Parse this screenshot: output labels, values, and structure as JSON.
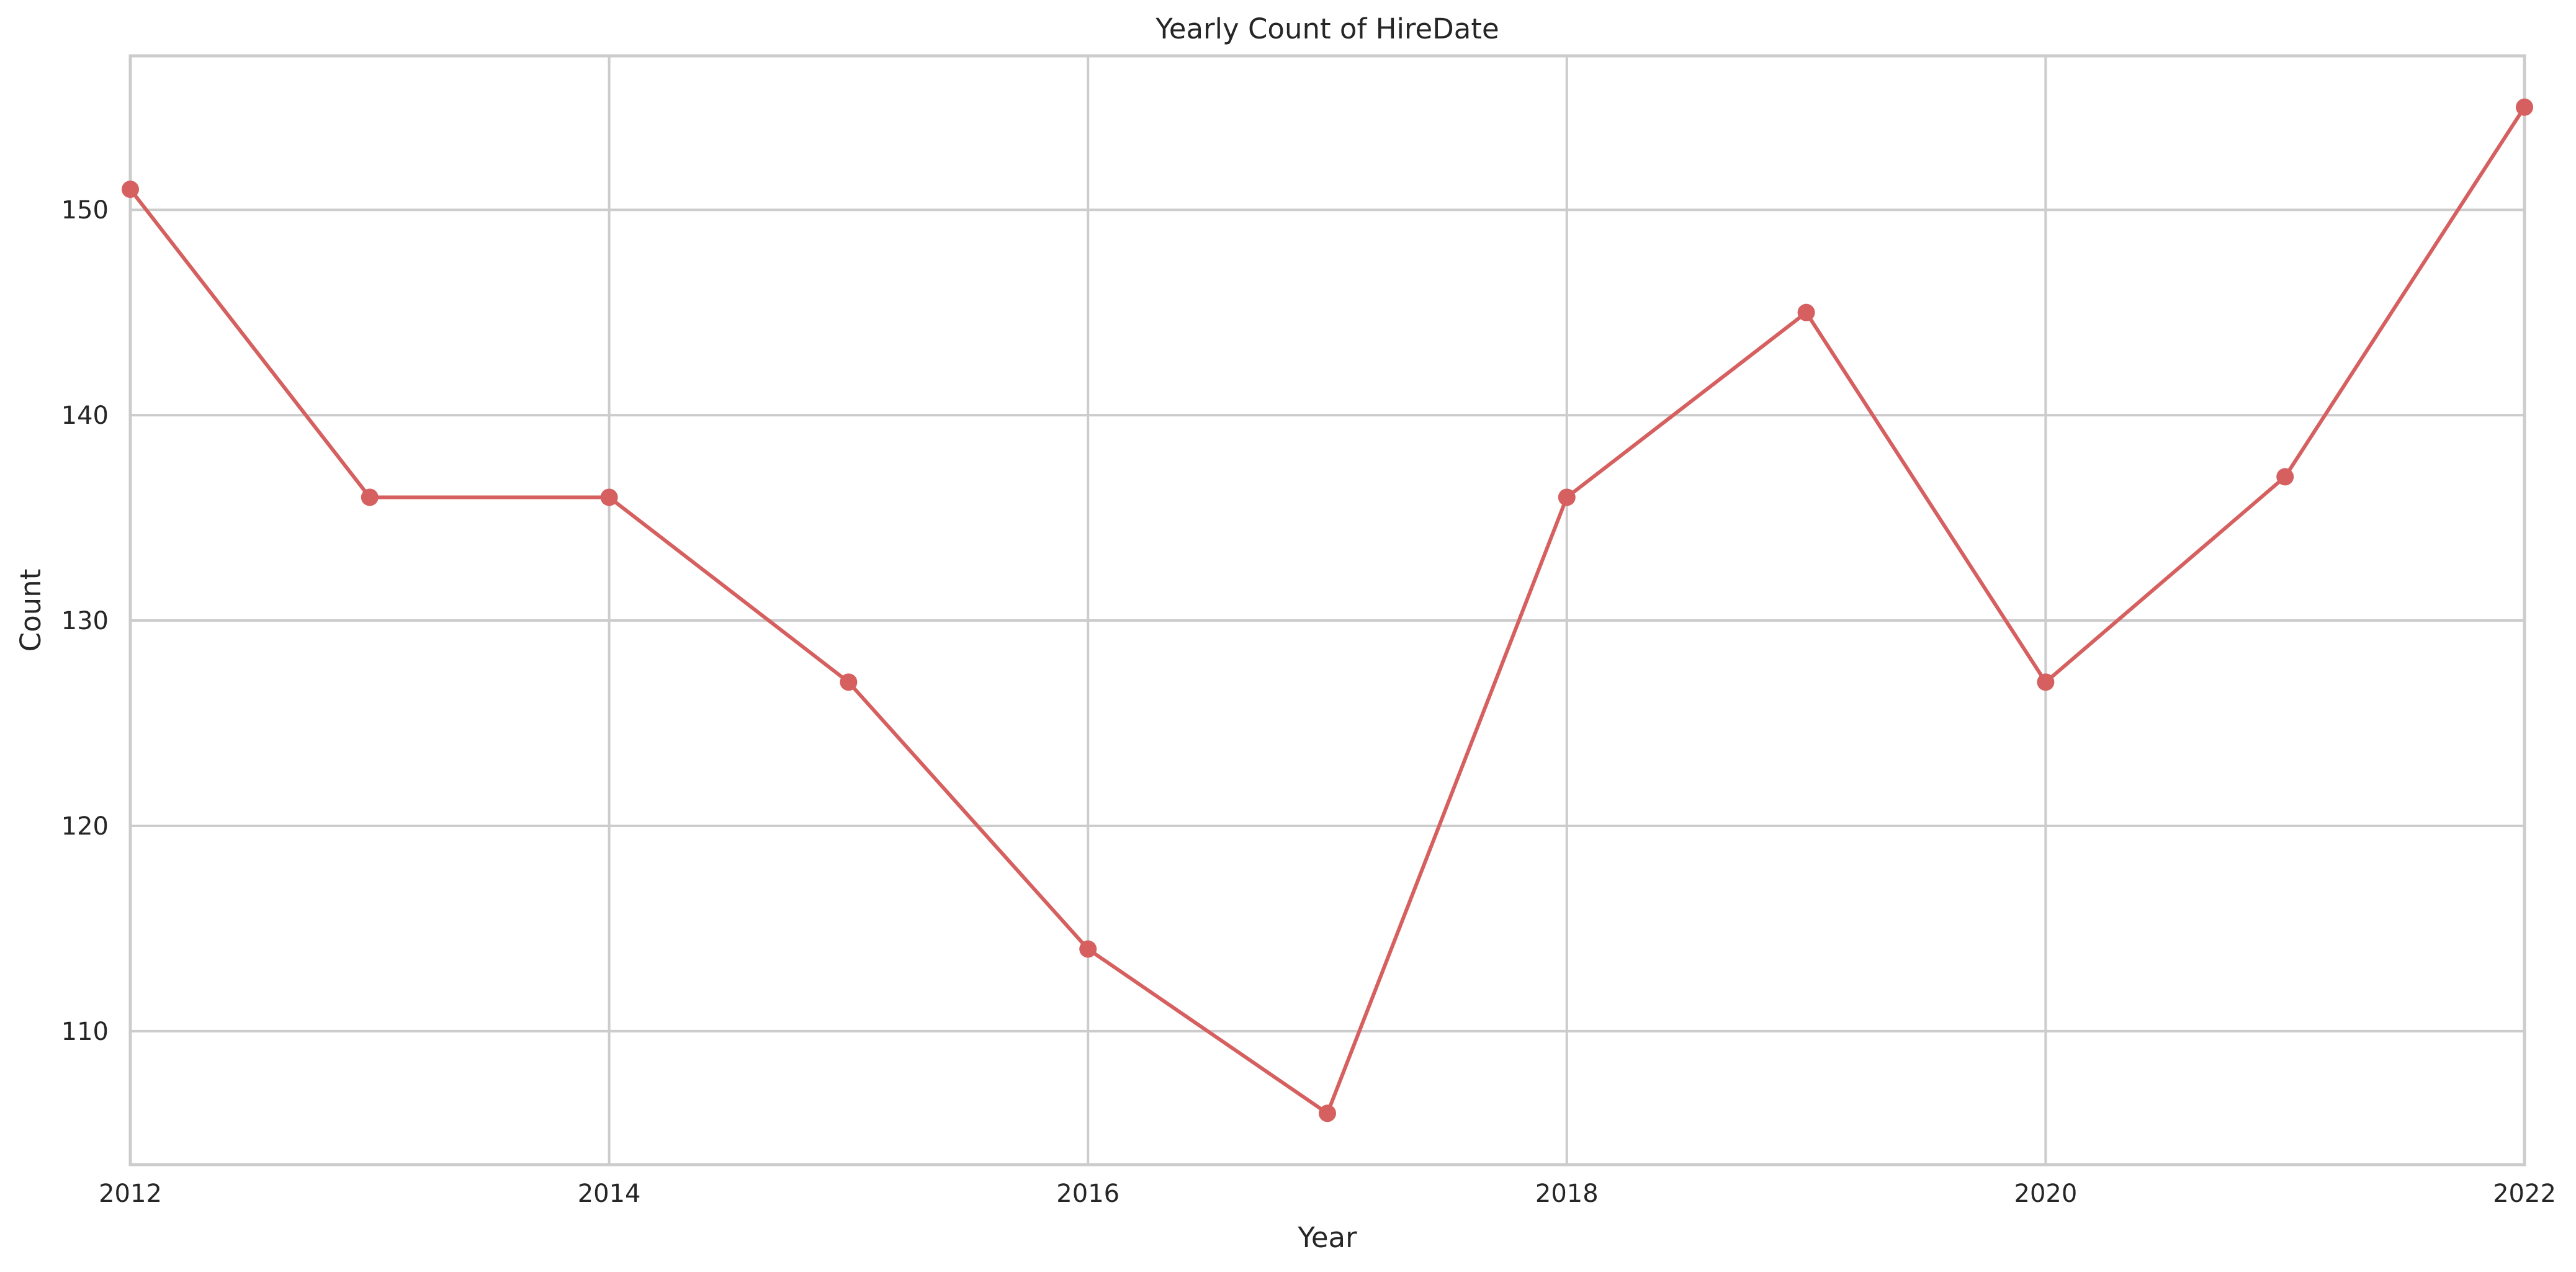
{
  "chart_data": {
    "type": "line",
    "title": "Yearly Count of HireDate",
    "xlabel": "Year",
    "ylabel": "Count",
    "x": [
      2012,
      2013,
      2014,
      2015,
      2016,
      2017,
      2018,
      2019,
      2020,
      2021,
      2022
    ],
    "series": [
      {
        "values": [
          151,
          136,
          136,
          127,
          114,
          106,
          136,
          145,
          127,
          137,
          155
        ]
      }
    ],
    "xlim": [
      2012,
      2022
    ],
    "ylim": [
      103.5,
      157.5
    ],
    "xticks": [
      2012,
      2014,
      2016,
      2018,
      2020,
      2022
    ],
    "yticks": [
      110,
      120,
      130,
      140,
      150
    ],
    "grid": true,
    "legend": "none",
    "colors": {
      "line": "#d65f5f",
      "grid": "#cccccc",
      "text": "#262626"
    }
  }
}
